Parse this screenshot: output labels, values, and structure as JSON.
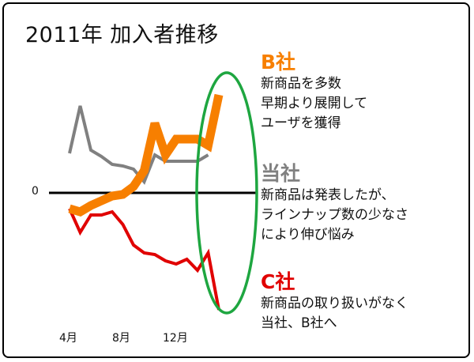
{
  "title": "2011年 加入者推移",
  "annotations": [
    {
      "head": "B社",
      "lines": [
        "新商品を多数",
        "早期より展開して",
        "ユーザを獲得"
      ],
      "color": "#f77f00"
    },
    {
      "head": "当社",
      "lines": [
        "新商品は発表したが、",
        "ラインナップ数の少なさ",
        "により伸び悩み"
      ],
      "color": "#808080"
    },
    {
      "head": "C社",
      "lines": [
        "新商品の取り扱いがなく",
        "当社、B社へ"
      ],
      "color": "#e00000"
    }
  ],
  "highlight_color": "#1ea640",
  "chart_data": {
    "type": "line",
    "title": "2011年 加入者推移",
    "x_tick_labels": [
      {
        "index": 0,
        "label": "4月"
      },
      {
        "index": 4,
        "label": "8月"
      },
      {
        "index": 8,
        "label": "12月"
      }
    ],
    "zero_label": "0",
    "x": [
      0,
      1,
      2,
      3,
      4,
      5,
      6,
      7,
      8,
      9,
      10,
      11,
      12,
      13,
      14,
      15
    ],
    "ylim": [
      -85,
      65
    ],
    "series": [
      {
        "name": "B社",
        "color": "#f77f00",
        "values": [
          -10,
          -12,
          -8,
          -5,
          -2,
          -1,
          4,
          14,
          44,
          24,
          34,
          34,
          34,
          30,
          62,
          null
        ]
      },
      {
        "name": "当社",
        "color": "#808080",
        "values": [
          25,
          55,
          27,
          23,
          18,
          17,
          15,
          7,
          24,
          20,
          20,
          20,
          20,
          24,
          null,
          null
        ]
      },
      {
        "name": "C社",
        "color": "#e00000",
        "values": [
          -10,
          -25,
          -14,
          -14,
          -12,
          -20,
          -33,
          -38,
          -39,
          -43,
          -45,
          -42,
          -49,
          -38,
          -74,
          null
        ]
      }
    ],
    "x_positions_note_removed": true
  }
}
